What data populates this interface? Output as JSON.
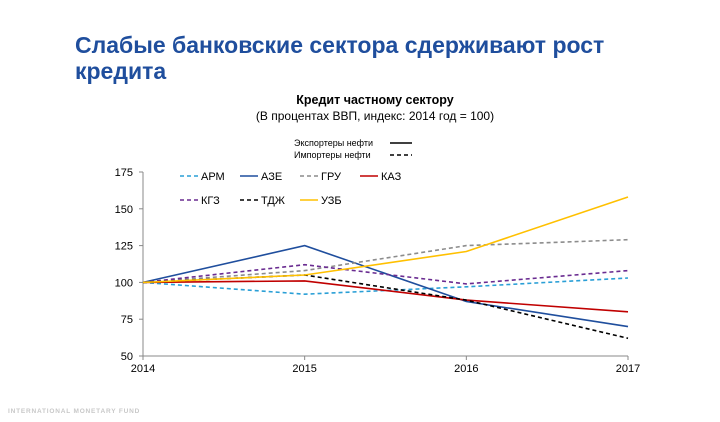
{
  "slide": {
    "title": "Слабые банковские сектора сдерживают рост кредита",
    "footer": "INTERNATIONAL MONETARY FUND"
  },
  "chart_data": {
    "type": "line",
    "title": "Кредит частному сектору",
    "subtitle": "(В процентах ВВП, индекс: 2014 год = 100)",
    "x": [
      "2014",
      "2015",
      "2016",
      "2017"
    ],
    "ylim": [
      50,
      175
    ],
    "yticks": [
      50,
      75,
      100,
      125,
      150,
      175
    ],
    "grid": false,
    "group_legend": [
      {
        "label": "Экспортеры нефти",
        "dash": "solid",
        "color": "#000000"
      },
      {
        "label": "Импортеры нефти",
        "dash": "dashed",
        "color": "#000000"
      }
    ],
    "series": [
      {
        "name": "АРМ",
        "values": [
          100,
          92,
          97,
          103
        ],
        "color": "#2a9fd6",
        "dash": "dashed"
      },
      {
        "name": "АЗЕ",
        "values": [
          100,
          125,
          87,
          70
        ],
        "color": "#1f4e9d",
        "dash": "solid"
      },
      {
        "name": "ГРУ",
        "values": [
          100,
          108,
          125,
          129
        ],
        "color": "#8c8c8c",
        "dash": "dashed"
      },
      {
        "name": "КАЗ",
        "values": [
          100,
          101,
          88,
          80
        ],
        "color": "#c00000",
        "dash": "solid"
      },
      {
        "name": "КГЗ",
        "values": [
          100,
          112,
          99,
          108
        ],
        "color": "#6a2c91",
        "dash": "dashed"
      },
      {
        "name": "ТДЖ",
        "values": [
          100,
          105,
          88,
          62
        ],
        "color": "#000000",
        "dash": "dashed"
      },
      {
        "name": "УЗБ",
        "values": [
          100,
          105,
          121,
          158
        ],
        "color": "#ffc000",
        "dash": "solid"
      }
    ]
  }
}
